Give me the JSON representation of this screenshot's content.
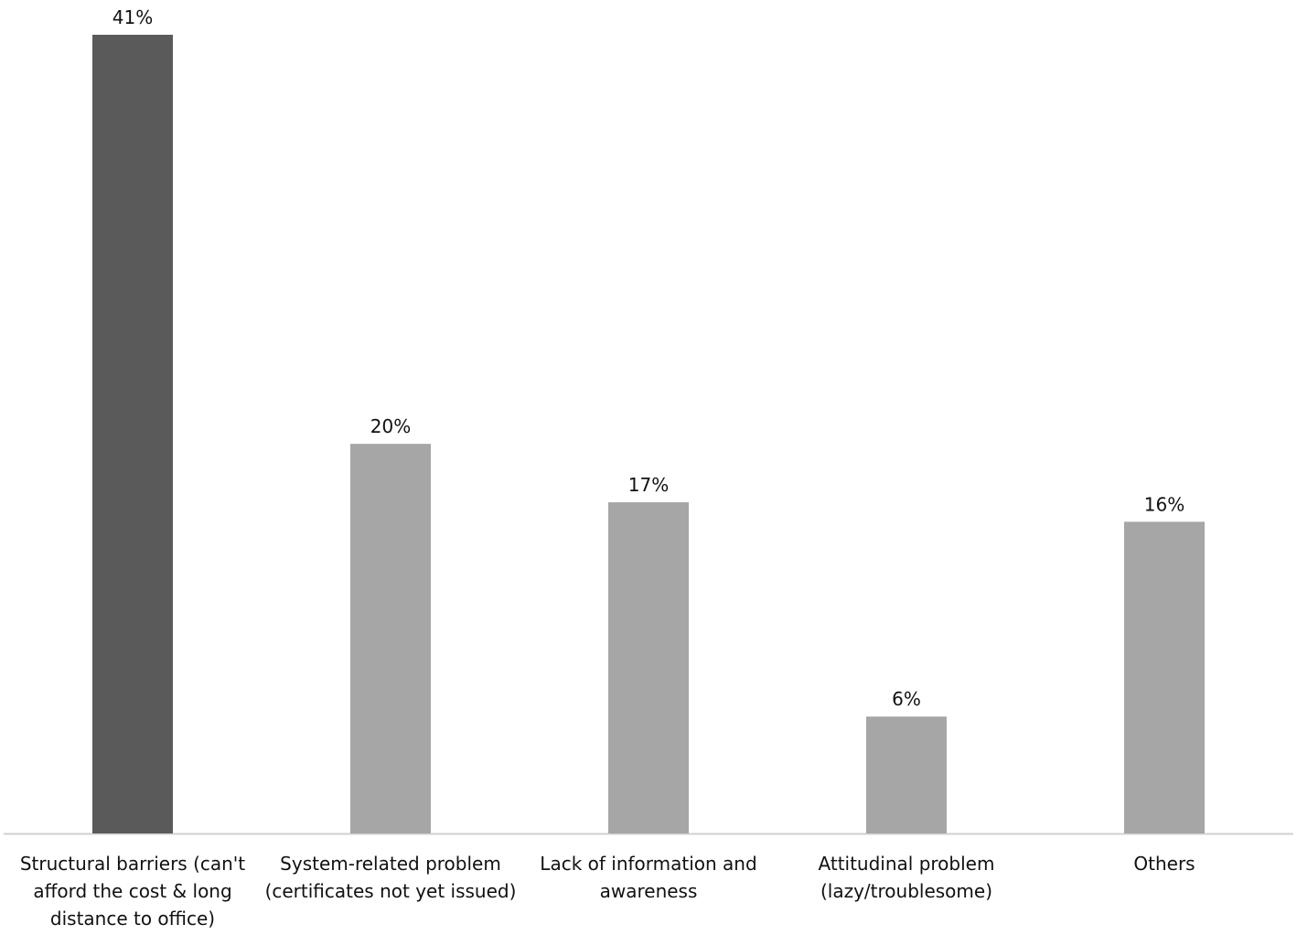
{
  "chart_data": {
    "type": "bar",
    "title": "",
    "xlabel": "",
    "ylabel": "",
    "ylim": [
      0,
      41
    ],
    "grid": false,
    "legend": "none",
    "categories": [
      [
        "Structural barriers (can't",
        "afford the cost & long",
        "distance to office)"
      ],
      [
        "System-related problem",
        "(certificates not yet issued)"
      ],
      [
        "Lack of information and",
        "awareness"
      ],
      [
        "Attitudinal problem",
        "(lazy/troublesome)"
      ],
      [
        "Others"
      ]
    ],
    "values": [
      41,
      20,
      17,
      6,
      16
    ],
    "data_labels": [
      "41%",
      "20%",
      "17%",
      "6%",
      "16%"
    ],
    "colors": [
      "#5a5a5a",
      "#a6a6a6",
      "#a6a6a6",
      "#a6a6a6",
      "#a6a6a6"
    ],
    "axis_color": "#d0d0d0"
  }
}
